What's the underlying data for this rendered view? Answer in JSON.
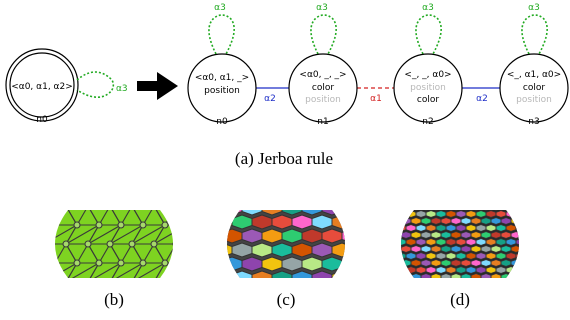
{
  "figure": {
    "caption_a": "(a) Jerboa rule",
    "caption_b": "(b)",
    "caption_c": "(c)",
    "caption_d": "(d)"
  },
  "left_node": {
    "label": "<α0, α1, α2>",
    "id": "n0",
    "loop_label": "α3"
  },
  "right_nodes": [
    {
      "id": "n0",
      "line1": "<α0, α1, _>",
      "line2": "position",
      "line3": "",
      "loop_label": "α3"
    },
    {
      "id": "n1",
      "line1": "<α0, _, _>",
      "line2": "color",
      "line3": "position",
      "loop_label": "α3"
    },
    {
      "id": "n2",
      "line1": "<_, _, α0>",
      "line2": "position",
      "line3": "color",
      "loop_label": "α3"
    },
    {
      "id": "n3",
      "line1": "<_, α1, α0>",
      "line2": "color",
      "line3": "position",
      "loop_label": "α3"
    }
  ],
  "edges": [
    {
      "label": "α2",
      "color": "#1f2fc8"
    },
    {
      "label": "α1",
      "color": "#d32020"
    },
    {
      "label": "α2",
      "color": "#1f2fc8"
    }
  ],
  "colors": {
    "loop": "#22aa22",
    "alpha2": "#1f2fc8",
    "alpha1": "#d32020",
    "faded_text": "#b8b8b8",
    "sphere_b_fill": "#7ed321"
  }
}
